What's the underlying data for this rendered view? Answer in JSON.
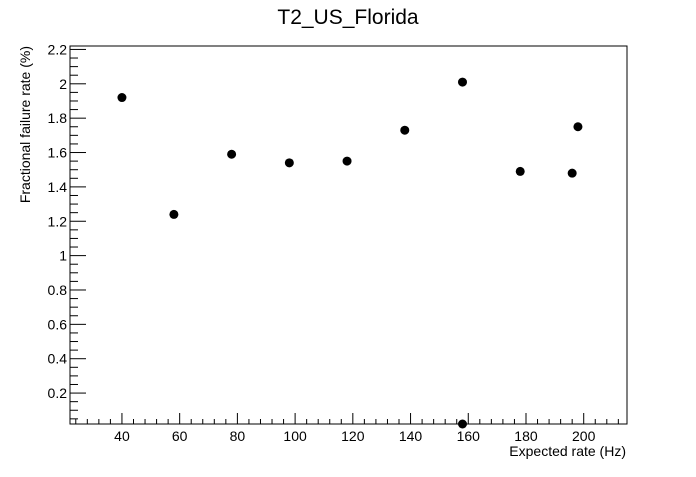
{
  "chart_data": {
    "type": "scatter",
    "title": "T2_US_Florida",
    "xlabel": "Expected rate (Hz)",
    "ylabel": "Fractional failure rate (%)",
    "xlim": [
      22,
      215
    ],
    "ylim": [
      0.02,
      2.22
    ],
    "x_ticks": [
      40,
      60,
      80,
      100,
      120,
      140,
      160,
      180,
      200
    ],
    "x_tick_labels": [
      "40",
      "60",
      "80",
      "100",
      "120",
      "140",
      "160",
      "180",
      "200"
    ],
    "y_ticks": [
      0.2,
      0.4,
      0.6,
      0.8,
      1.0,
      1.2,
      1.4,
      1.6,
      1.8,
      2.0,
      2.2
    ],
    "y_tick_labels": [
      "0.2",
      "0.4",
      "0.6",
      "0.8",
      "1",
      "1.2",
      "1.4",
      "1.6",
      "1.8",
      "2",
      "2.2"
    ],
    "grid": false,
    "legend": "none",
    "marker_color": "#000000",
    "points": [
      {
        "x": 40,
        "y": 1.92
      },
      {
        "x": 58,
        "y": 1.24
      },
      {
        "x": 78,
        "y": 1.59
      },
      {
        "x": 98,
        "y": 1.54
      },
      {
        "x": 118,
        "y": 1.55
      },
      {
        "x": 138,
        "y": 1.73
      },
      {
        "x": 158,
        "y": 2.01
      },
      {
        "x": 158,
        "y": 0.02
      },
      {
        "x": 178,
        "y": 1.49
      },
      {
        "x": 196,
        "y": 1.48
      },
      {
        "x": 198,
        "y": 1.75
      }
    ]
  }
}
